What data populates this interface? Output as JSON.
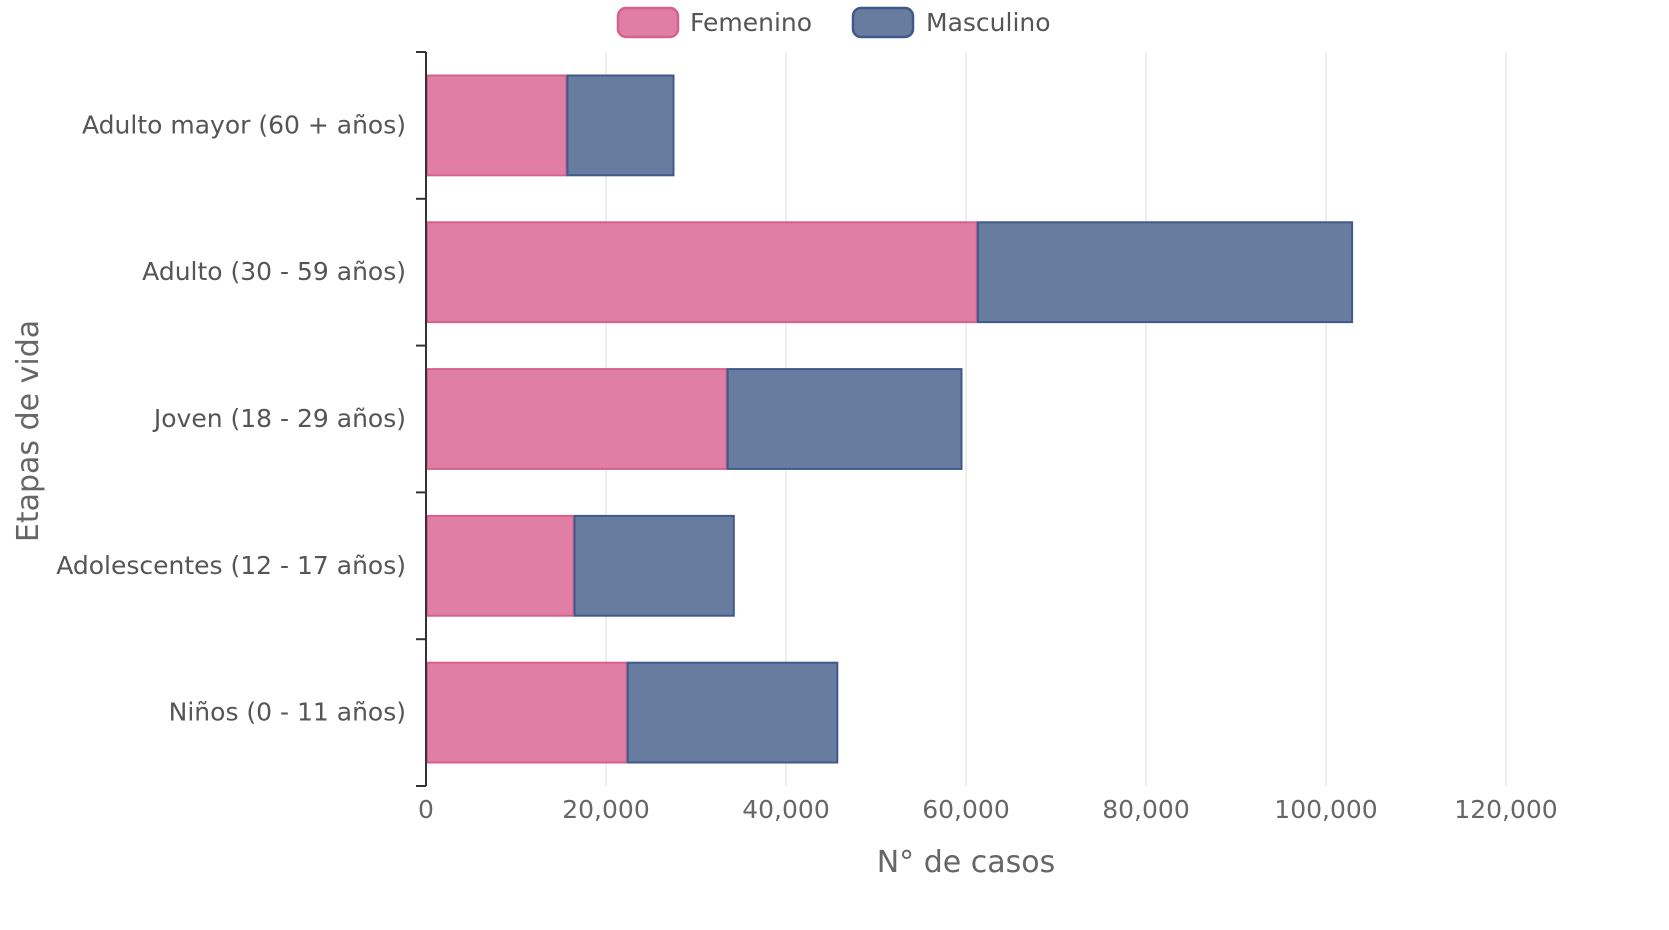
{
  "chart_data": {
    "type": "bar",
    "orientation": "horizontal",
    "stacked": true,
    "categories": [
      "Adulto mayor (60 + años)",
      "Adulto (30 - 59 años)",
      "Joven (18 - 29 años)",
      "Adolescentes (12 - 17 años)",
      "Niños (0 - 11 años)"
    ],
    "series": [
      {
        "name": "Femenino",
        "color": "#e07ea6",
        "border": "#d4628e",
        "values": [
          15600,
          61200,
          33400,
          16400,
          22300
        ]
      },
      {
        "name": "Masculino",
        "color": "#687ca0",
        "border": "#3f5a8a",
        "values": [
          11900,
          41700,
          26100,
          17800,
          23400
        ]
      }
    ],
    "xlabel": "N° de casos",
    "ylabel": "Etapas de vida",
    "xlim": [
      0,
      120000
    ],
    "xticks": [
      "0",
      "20,000",
      "40,000",
      "60,000",
      "80,000",
      "100,000",
      "120,000"
    ],
    "xtick_values": [
      0,
      20000,
      40000,
      60000,
      80000,
      100000,
      120000
    ],
    "grid": "vertical",
    "legend_position": "top"
  }
}
